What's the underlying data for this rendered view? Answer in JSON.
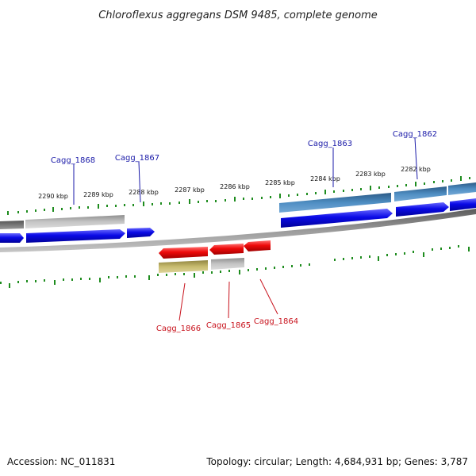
{
  "title": "Chloroflexus aggregans DSM 9485, complete genome",
  "footer": {
    "accession": "Accession: NC_011831",
    "topology": "Topology: circular; Length: 4,684,931 bp; Genes: 3,787"
  },
  "ruler": {
    "unit": "kbp",
    "labels": [
      "2290 kbp",
      "2289 kbp",
      "2288 kbp",
      "2287 kbp",
      "2286 kbp",
      "2285 kbp",
      "2284 kbp",
      "2283 kbp",
      "2282 kbp"
    ]
  },
  "genes": {
    "forward_labels": [
      "Cagg_1868",
      "Cagg_1867",
      "Cagg_1863",
      "Cagg_1862"
    ],
    "reverse_labels": [
      "Cagg_1866",
      "Cagg_1865",
      "Cagg_1864"
    ]
  },
  "colors": {
    "cds": "#0a0ae6",
    "cds_reverse": "#e60a0a",
    "gene_feature": "#3d7fb5",
    "pseudo_feature": "#bdbdbd",
    "rna_feature": "#c8bc6e",
    "backbone": "#7a7a7a",
    "ticks": "#1e8c1e",
    "label_forward": "#1a1aa8",
    "label_reverse": "#c8121c"
  }
}
